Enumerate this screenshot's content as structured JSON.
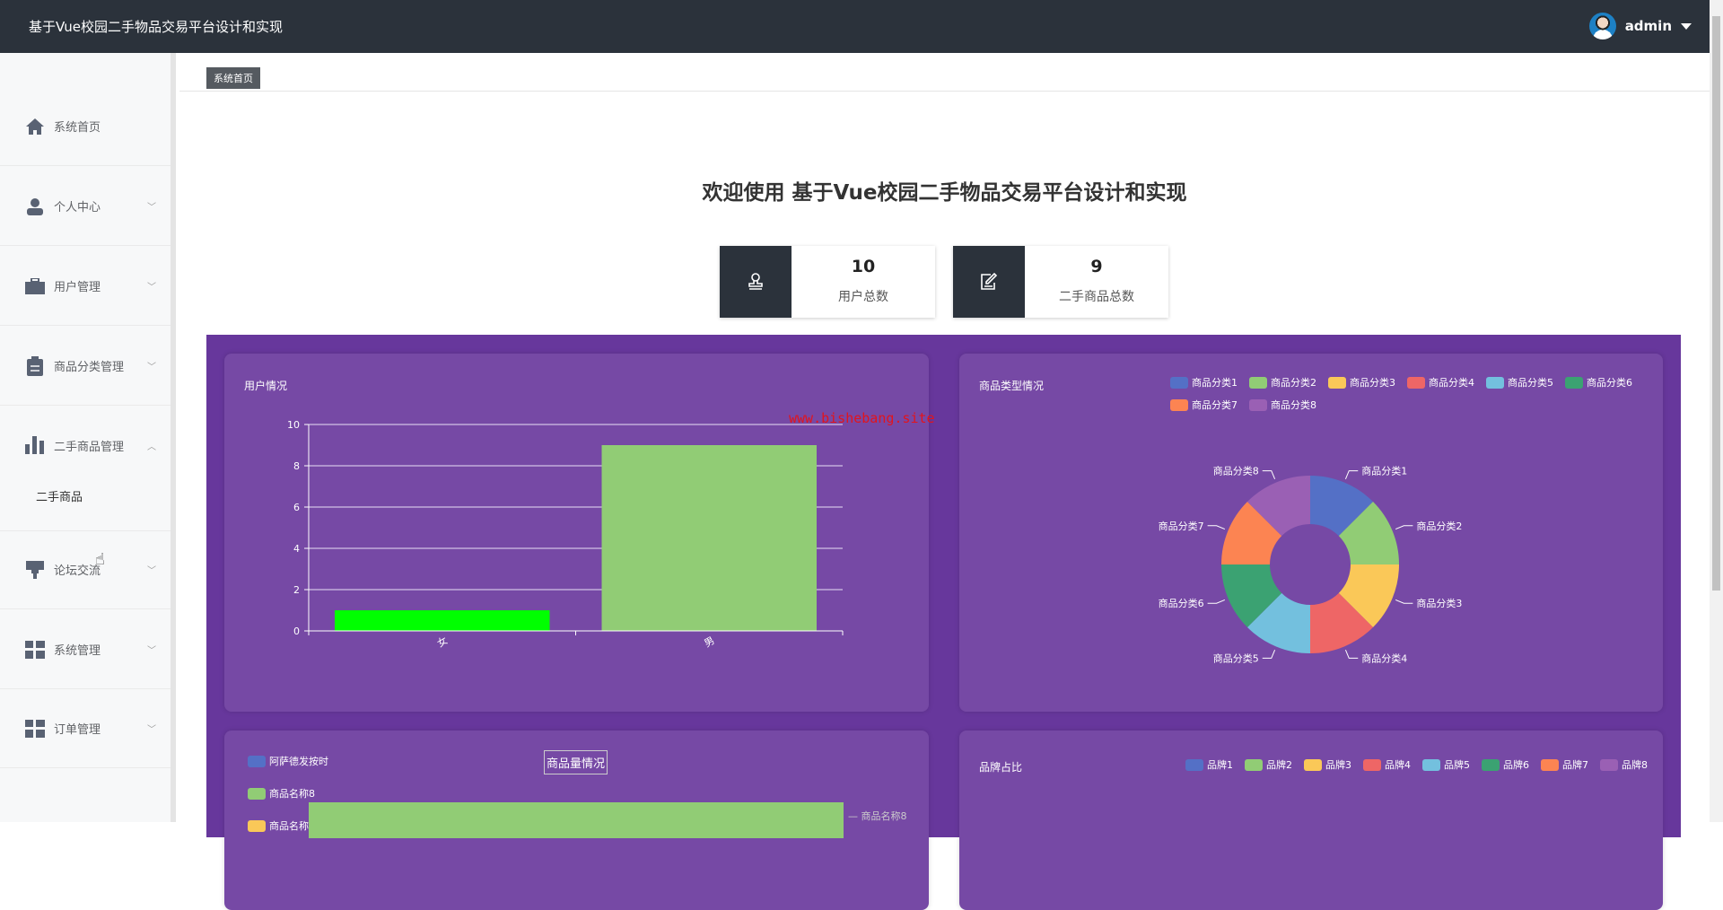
{
  "header": {
    "title": "基于Vue校园二手物品交易平台设计和实现",
    "user": "admin"
  },
  "sidebar": {
    "items": [
      {
        "label": "系统首页",
        "icon": "home-icon",
        "expandable": false
      },
      {
        "label": "个人中心",
        "icon": "user-icon",
        "expandable": true
      },
      {
        "label": "用户管理",
        "icon": "briefcase-icon",
        "expandable": true
      },
      {
        "label": "商品分类管理",
        "icon": "clipboard-icon",
        "expandable": true
      },
      {
        "label": "二手商品管理",
        "icon": "bar-chart-icon",
        "expandable": true,
        "expanded": true
      },
      {
        "label": "论坛交流",
        "icon": "brush-icon",
        "expandable": true
      },
      {
        "label": "系统管理",
        "icon": "grid-icon",
        "expandable": true
      },
      {
        "label": "订单管理",
        "icon": "grid-icon",
        "expandable": true
      }
    ],
    "sub_item": "二手商品"
  },
  "breadcrumb": "系统首页",
  "welcome": "欢迎使用 基于Vue校园二手物品交易平台设计和实现",
  "stats": [
    {
      "value": "10",
      "label": "用户总数",
      "icon": "stamp-icon"
    },
    {
      "value": "9",
      "label": "二手商品总数",
      "icon": "edit-icon"
    }
  ],
  "watermark": "www.bishebang.site",
  "chart_data": [
    {
      "type": "bar",
      "title": "用户情况",
      "categories": [
        "女",
        "男"
      ],
      "values": [
        1,
        9
      ],
      "colors": [
        "#00ff00",
        "#91cc75"
      ],
      "ylim": [
        0,
        10
      ],
      "yticks": [
        "0",
        "2",
        "4",
        "6",
        "8",
        "10"
      ],
      "grid": true
    },
    {
      "type": "pie",
      "title": "商品类型情况",
      "donut": true,
      "categories": [
        "商品分类1",
        "商品分类2",
        "商品分类3",
        "商品分类4",
        "商品分类5",
        "商品分类6",
        "商品分类7",
        "商品分类8"
      ],
      "values": [
        1,
        1,
        1,
        1,
        1,
        1,
        1,
        1
      ],
      "colors": [
        "#5470c6",
        "#91cc75",
        "#fac858",
        "#ee6666",
        "#73c0de",
        "#3ba272",
        "#fc8452",
        "#9a60b4"
      ],
      "legend": "top-right"
    },
    {
      "type": "bar",
      "title": "商品量情况",
      "orientation": "horizontal",
      "legend": [
        "阿萨德发按时",
        "商品名称8",
        "商品名称7"
      ],
      "legend_colors": [
        "#5470c6",
        "#91cc75",
        "#fac858"
      ],
      "visible_label": "商品名称8"
    },
    {
      "type": "pie",
      "title": "品牌占比",
      "legend": [
        "品牌1",
        "品牌2",
        "品牌3",
        "品牌4",
        "品牌5",
        "品牌6",
        "品牌7",
        "品牌8"
      ],
      "colors": [
        "#5470c6",
        "#91cc75",
        "#fac858",
        "#ee6666",
        "#73c0de",
        "#3ba272",
        "#fc8452",
        "#9a60b4"
      ]
    }
  ]
}
